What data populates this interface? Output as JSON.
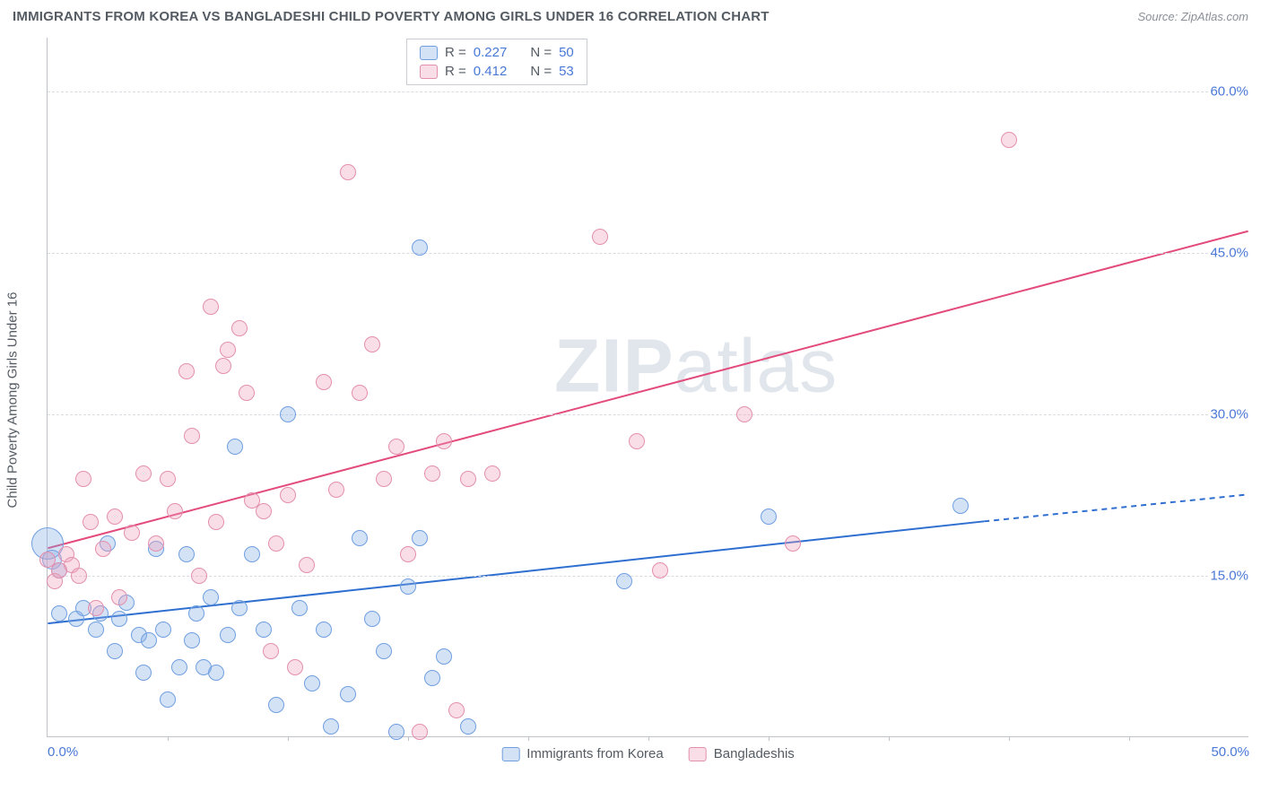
{
  "header": {
    "title": "IMMIGRANTS FROM KOREA VS BANGLADESHI CHILD POVERTY AMONG GIRLS UNDER 16 CORRELATION CHART",
    "source": "Source: ZipAtlas.com"
  },
  "watermark": {
    "bold": "ZIP",
    "rest": "atlas"
  },
  "chart": {
    "type": "scatter",
    "y_axis_title": "Child Poverty Among Girls Under 16",
    "background_color": "#ffffff",
    "grid_color": "#d9dce0",
    "axis_color": "#bfc3c9",
    "tick_label_color": "#4a78d6",
    "text_color": "#545b63",
    "xlim": [
      0,
      50
    ],
    "ylim": [
      0,
      65
    ],
    "yticks": [
      {
        "value": 15,
        "label": "15.0%"
      },
      {
        "value": 30,
        "label": "30.0%"
      },
      {
        "value": 45,
        "label": "45.0%"
      },
      {
        "value": 60,
        "label": "60.0%"
      }
    ],
    "xticks": [
      {
        "value": 0,
        "label": "0.0%"
      },
      {
        "value": 50,
        "label": "50.0%"
      }
    ],
    "x_minor_ticks": [
      5,
      10,
      15,
      20,
      25,
      30,
      35,
      40,
      45
    ],
    "marker_radius": 9,
    "marker_stroke_width": 1.5,
    "trend_line_width": 2,
    "series": [
      {
        "name": "Immigrants from Korea",
        "fill_color": "rgba(132,171,230,0.35)",
        "stroke_color": "#6f9fe0",
        "line_color": "#2f6fd0",
        "R": "0.227",
        "N": "50",
        "trend": {
          "x1": 0,
          "y1": 10.5,
          "x2": 39,
          "y2": 20.0,
          "dash_x2": 50,
          "dash_y2": 22.5
        },
        "points": [
          {
            "x": 0.0,
            "y": 18.0,
            "r": 18
          },
          {
            "x": 0.2,
            "y": 16.5,
            "r": 11
          },
          {
            "x": 0.5,
            "y": 15.5
          },
          {
            "x": 0.5,
            "y": 11.5
          },
          {
            "x": 1.2,
            "y": 11.0
          },
          {
            "x": 1.5,
            "y": 12.0
          },
          {
            "x": 2.0,
            "y": 10.0
          },
          {
            "x": 2.2,
            "y": 11.5
          },
          {
            "x": 2.5,
            "y": 18.0
          },
          {
            "x": 2.8,
            "y": 8.0
          },
          {
            "x": 3.0,
            "y": 11.0
          },
          {
            "x": 3.3,
            "y": 12.5
          },
          {
            "x": 3.8,
            "y": 9.5
          },
          {
            "x": 4.0,
            "y": 6.0
          },
          {
            "x": 4.2,
            "y": 9.0
          },
          {
            "x": 4.5,
            "y": 17.5
          },
          {
            "x": 4.8,
            "y": 10.0
          },
          {
            "x": 5.0,
            "y": 3.5
          },
          {
            "x": 5.5,
            "y": 6.5
          },
          {
            "x": 5.8,
            "y": 17.0
          },
          {
            "x": 6.0,
            "y": 9.0
          },
          {
            "x": 6.2,
            "y": 11.5
          },
          {
            "x": 6.5,
            "y": 6.5
          },
          {
            "x": 6.8,
            "y": 13.0
          },
          {
            "x": 7.0,
            "y": 6.0
          },
          {
            "x": 7.5,
            "y": 9.5
          },
          {
            "x": 7.8,
            "y": 27.0
          },
          {
            "x": 8.0,
            "y": 12.0
          },
          {
            "x": 8.5,
            "y": 17.0
          },
          {
            "x": 9.0,
            "y": 10.0
          },
          {
            "x": 9.5,
            "y": 3.0
          },
          {
            "x": 10.0,
            "y": 30.0
          },
          {
            "x": 10.5,
            "y": 12.0
          },
          {
            "x": 11.0,
            "y": 5.0
          },
          {
            "x": 11.5,
            "y": 10.0
          },
          {
            "x": 11.8,
            "y": 1.0
          },
          {
            "x": 12.5,
            "y": 4.0
          },
          {
            "x": 13.0,
            "y": 18.5
          },
          {
            "x": 13.5,
            "y": 11.0
          },
          {
            "x": 14.0,
            "y": 8.0
          },
          {
            "x": 14.5,
            "y": 0.5
          },
          {
            "x": 15.0,
            "y": 14.0
          },
          {
            "x": 15.5,
            "y": 45.5
          },
          {
            "x": 15.5,
            "y": 18.5
          },
          {
            "x": 16.5,
            "y": 7.5
          },
          {
            "x": 17.5,
            "y": 1.0
          },
          {
            "x": 24.0,
            "y": 14.5
          },
          {
            "x": 30.0,
            "y": 20.5
          },
          {
            "x": 38.0,
            "y": 21.5
          },
          {
            "x": 16.0,
            "y": 5.5
          }
        ]
      },
      {
        "name": "Bangladeshis",
        "fill_color": "rgba(241,160,185,0.35)",
        "stroke_color": "#e38fad",
        "line_color": "#e24b7b",
        "R": "0.412",
        "N": "53",
        "trend": {
          "x1": 0,
          "y1": 17.5,
          "x2": 50,
          "y2": 47.0
        },
        "points": [
          {
            "x": 0.0,
            "y": 16.5
          },
          {
            "x": 0.3,
            "y": 14.5
          },
          {
            "x": 0.5,
            "y": 15.5
          },
          {
            "x": 0.8,
            "y": 17.0
          },
          {
            "x": 1.0,
            "y": 16.0
          },
          {
            "x": 1.3,
            "y": 15.0
          },
          {
            "x": 1.5,
            "y": 24.0
          },
          {
            "x": 1.8,
            "y": 20.0
          },
          {
            "x": 2.0,
            "y": 12.0
          },
          {
            "x": 2.3,
            "y": 17.5
          },
          {
            "x": 2.8,
            "y": 20.5
          },
          {
            "x": 3.0,
            "y": 13.0
          },
          {
            "x": 3.5,
            "y": 19.0
          },
          {
            "x": 4.0,
            "y": 24.5
          },
          {
            "x": 4.5,
            "y": 18.0
          },
          {
            "x": 5.0,
            "y": 24.0
          },
          {
            "x": 5.3,
            "y": 21.0
          },
          {
            "x": 5.8,
            "y": 34.0
          },
          {
            "x": 6.0,
            "y": 28.0
          },
          {
            "x": 6.3,
            "y": 15.0
          },
          {
            "x": 6.8,
            "y": 40.0
          },
          {
            "x": 7.0,
            "y": 20.0
          },
          {
            "x": 7.3,
            "y": 34.5
          },
          {
            "x": 7.5,
            "y": 36.0
          },
          {
            "x": 8.0,
            "y": 38.0
          },
          {
            "x": 8.3,
            "y": 32.0
          },
          {
            "x": 8.5,
            "y": 22.0
          },
          {
            "x": 9.0,
            "y": 21.0
          },
          {
            "x": 9.3,
            "y": 8.0
          },
          {
            "x": 9.5,
            "y": 18.0
          },
          {
            "x": 10.0,
            "y": 22.5
          },
          {
            "x": 10.3,
            "y": 6.5
          },
          {
            "x": 10.8,
            "y": 16.0
          },
          {
            "x": 11.5,
            "y": 33.0
          },
          {
            "x": 12.0,
            "y": 23.0
          },
          {
            "x": 12.5,
            "y": 52.5
          },
          {
            "x": 13.0,
            "y": 32.0
          },
          {
            "x": 13.5,
            "y": 36.5
          },
          {
            "x": 14.0,
            "y": 24.0
          },
          {
            "x": 14.5,
            "y": 27.0
          },
          {
            "x": 15.0,
            "y": 17.0
          },
          {
            "x": 15.5,
            "y": 0.5
          },
          {
            "x": 16.0,
            "y": 24.5
          },
          {
            "x": 16.5,
            "y": 27.5
          },
          {
            "x": 17.0,
            "y": 2.5
          },
          {
            "x": 17.5,
            "y": 24.0
          },
          {
            "x": 18.5,
            "y": 24.5
          },
          {
            "x": 23.0,
            "y": 46.5
          },
          {
            "x": 24.5,
            "y": 27.5
          },
          {
            "x": 25.5,
            "y": 15.5
          },
          {
            "x": 29.0,
            "y": 30.0
          },
          {
            "x": 31.0,
            "y": 18.0
          },
          {
            "x": 40.0,
            "y": 55.5
          }
        ]
      }
    ]
  },
  "legend_box": {
    "labels": {
      "R": "R =",
      "N": "N ="
    }
  },
  "bottom_legend": {
    "items": [
      "Immigrants from Korea",
      "Bangladeshis"
    ]
  }
}
